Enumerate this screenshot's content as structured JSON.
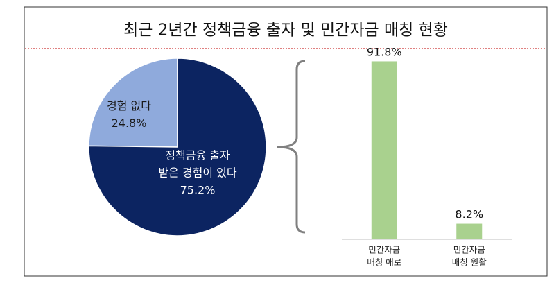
{
  "title": "최근 2년간 정책금융 출자 및 민간자금 매칭 현황",
  "chart_data": [
    {
      "type": "pie",
      "categories": [
        [
          "경험 없다"
        ],
        [
          "정책금융 출자",
          "받은 경험이 있다"
        ]
      ],
      "values": [
        24.8,
        75.2
      ],
      "value_labels": [
        "24.8%",
        "75.2%"
      ],
      "colors": [
        "#8faadc",
        "#0c2461"
      ],
      "label_colors": [
        "#1a1a1a",
        "#ffffff"
      ]
    },
    {
      "type": "bar",
      "categories": [
        [
          "민간자금",
          "매칭 애로"
        ],
        [
          "민간자금",
          "매칭 원활"
        ]
      ],
      "values": [
        91.8,
        8.2
      ],
      "value_labels": [
        "91.8%",
        "8.2%"
      ],
      "color": "#a9d18e",
      "ylim": [
        0,
        100
      ]
    }
  ]
}
